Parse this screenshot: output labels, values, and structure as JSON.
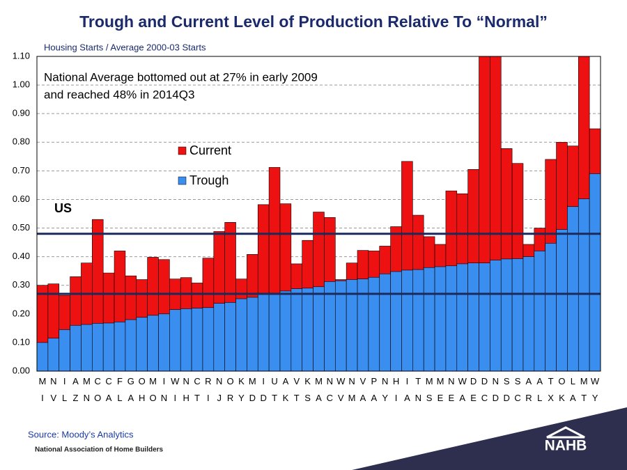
{
  "chart_data": {
    "type": "bar",
    "title": "Trough and Current Level of Production Relative To “Normal”",
    "subtitle": "Housing Starts / Average 2000-03 Starts",
    "annotation": [
      "National Average bottomed out at 27% in early 2009",
      "and reached 48% in 2014Q3"
    ],
    "reference_label": "US",
    "hlines": [
      0.48,
      0.27
    ],
    "source": "Source: Moody’s Analytics",
    "organization": "National Association of Home Builders",
    "logo": "NAHB",
    "categories": [
      "MI",
      "NV",
      "IL",
      "AZ",
      "MN",
      "CO",
      "CA",
      "FL",
      "GA",
      "OH",
      "MO",
      "IN",
      "WI",
      "NH",
      "CT",
      "RI",
      "NJ",
      "OR",
      "KY",
      "MD",
      "ID",
      "UT",
      "AK",
      "VT",
      "KS",
      "MA",
      "NC",
      "WV",
      "NM",
      "VA",
      "PA",
      "NY",
      "HI",
      "IA",
      "TN",
      "MS",
      "ME",
      "NE",
      "WA",
      "DE",
      "DC",
      "ND",
      "SD",
      "SC",
      "AR",
      "AL",
      "TX",
      "OK",
      "LA",
      "MT",
      "WY"
    ],
    "series": [
      {
        "name": "Current",
        "color": "#ee1111",
        "values": [
          0.3,
          0.305,
          0.265,
          0.33,
          0.378,
          0.53,
          0.343,
          0.42,
          0.333,
          0.32,
          0.398,
          0.39,
          0.322,
          0.327,
          0.308,
          0.395,
          0.488,
          0.52,
          0.322,
          0.408,
          0.582,
          0.712,
          0.585,
          0.375,
          0.457,
          0.556,
          0.537,
          0.32,
          0.378,
          0.422,
          0.42,
          0.437,
          0.505,
          0.733,
          0.545,
          0.47,
          0.443,
          0.63,
          0.62,
          0.705,
          1.1,
          1.1,
          0.778,
          0.726,
          0.443,
          0.5,
          0.74,
          0.8,
          0.787,
          1.1,
          0.847
        ]
      },
      {
        "name": "Trough",
        "color": "#3a8ef0",
        "values": [
          0.1,
          0.115,
          0.145,
          0.16,
          0.163,
          0.167,
          0.168,
          0.172,
          0.18,
          0.188,
          0.195,
          0.2,
          0.215,
          0.218,
          0.22,
          0.222,
          0.237,
          0.24,
          0.253,
          0.258,
          0.268,
          0.27,
          0.28,
          0.288,
          0.29,
          0.295,
          0.313,
          0.316,
          0.32,
          0.322,
          0.328,
          0.34,
          0.348,
          0.353,
          0.355,
          0.362,
          0.365,
          0.368,
          0.375,
          0.378,
          0.378,
          0.388,
          0.392,
          0.393,
          0.4,
          0.42,
          0.447,
          0.495,
          0.575,
          0.602,
          0.69
        ]
      }
    ],
    "ylim": [
      0,
      1.1
    ],
    "yticks": [
      {
        "value": 0,
        "label": "0.00"
      },
      {
        "value": 0.1,
        "label": "0.10"
      },
      {
        "value": 0.2,
        "label": "0.20"
      },
      {
        "value": 0.3,
        "label": "0.30"
      },
      {
        "value": 0.4,
        "label": "0.40"
      },
      {
        "value": 0.5,
        "label": "0.50"
      },
      {
        "value": 0.6,
        "label": "0.60"
      },
      {
        "value": 0.7,
        "label": "0.70"
      },
      {
        "value": 0.8,
        "label": "0.80"
      },
      {
        "value": 0.9,
        "label": "0.90"
      },
      {
        "value": 1.0,
        "label": "1.00"
      },
      {
        "value": 1.1,
        "label": "1.10"
      }
    ],
    "grid": true
  }
}
